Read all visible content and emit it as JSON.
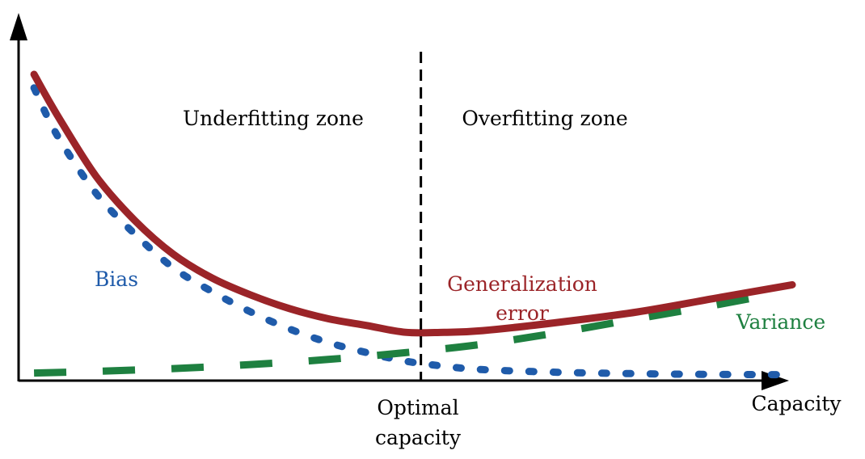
{
  "chart_data": {
    "type": "line",
    "xlabel": "Capacity",
    "ylabel": "",
    "x_ticks": false,
    "y_ticks": false,
    "grid": false,
    "legend": "none",
    "zones": {
      "left": "Underfitting zone",
      "right": "Overfitting zone"
    },
    "marker": {
      "label_line1": "Optimal",
      "label_line2": "capacity",
      "x": 0.52
    },
    "xlim": [
      0,
      1
    ],
    "ylim": [
      0,
      1
    ],
    "series": [
      {
        "name": "Bias",
        "color": "#1f5baa",
        "style": "dotted",
        "x": [
          0.02,
          0.05,
          0.1,
          0.15,
          0.2,
          0.25,
          0.3,
          0.35,
          0.4,
          0.45,
          0.5,
          0.55,
          0.6,
          0.7,
          0.8,
          0.9,
          1.0
        ],
        "y": [
          0.86,
          0.72,
          0.55,
          0.43,
          0.33,
          0.26,
          0.2,
          0.15,
          0.11,
          0.08,
          0.055,
          0.04,
          0.03,
          0.022,
          0.018,
          0.016,
          0.015
        ]
      },
      {
        "name": "Variance",
        "color": "#1e8040",
        "style": "dashed",
        "x": [
          0.02,
          0.1,
          0.2,
          0.3,
          0.4,
          0.5,
          0.6,
          0.7,
          0.8,
          0.9,
          0.97
        ],
        "y": [
          0.02,
          0.025,
          0.033,
          0.045,
          0.06,
          0.08,
          0.105,
          0.14,
          0.18,
          0.22,
          0.25
        ]
      },
      {
        "name": "Generalization error",
        "name_line1": "Generalization",
        "name_line2": "error",
        "color": "#9b2428",
        "style": "solid",
        "x": [
          0.02,
          0.05,
          0.1,
          0.15,
          0.2,
          0.25,
          0.3,
          0.35,
          0.4,
          0.45,
          0.5,
          0.55,
          0.6,
          0.7,
          0.8,
          0.9,
          1.0
        ],
        "y": [
          0.9,
          0.78,
          0.6,
          0.47,
          0.37,
          0.3,
          0.25,
          0.21,
          0.18,
          0.16,
          0.14,
          0.14,
          0.145,
          0.17,
          0.2,
          0.24,
          0.28
        ]
      }
    ]
  }
}
